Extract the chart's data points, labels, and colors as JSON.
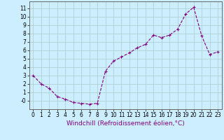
{
  "x": [
    0,
    1,
    2,
    3,
    4,
    5,
    6,
    7,
    8,
    9,
    10,
    11,
    12,
    13,
    14,
    15,
    16,
    17,
    18,
    19,
    20,
    21,
    22,
    23
  ],
  "y": [
    3,
    2,
    1.5,
    0.5,
    0.2,
    -0.2,
    -0.3,
    -0.4,
    -0.3,
    3.5,
    4.7,
    5.2,
    5.7,
    6.3,
    6.7,
    7.8,
    7.5,
    7.8,
    8.5,
    10.3,
    11.1,
    7.7,
    5.5,
    5.8
  ],
  "line_color": "#800080",
  "marker": "+",
  "marker_size": 3.5,
  "marker_linewidth": 0.8,
  "line_width": 0.8,
  "bg_color": "#cceeff",
  "grid_color": "#aacccc",
  "xlabel": "Windchill (Refroidissement éolien,°C)",
  "xlim": [
    -0.5,
    23.5
  ],
  "ylim": [
    -1.0,
    11.8
  ],
  "yticks": [
    0,
    1,
    2,
    3,
    4,
    5,
    6,
    7,
    8,
    9,
    10,
    11
  ],
  "ytick_labels": [
    "-0",
    "1",
    "2",
    "3",
    "4",
    "5",
    "6",
    "7",
    "8",
    "9",
    "10",
    "11"
  ],
  "xticks": [
    0,
    1,
    2,
    3,
    4,
    5,
    6,
    7,
    8,
    9,
    10,
    11,
    12,
    13,
    14,
    15,
    16,
    17,
    18,
    19,
    20,
    21,
    22,
    23
  ],
  "tick_fontsize": 5.5,
  "xlabel_fontsize": 6.5,
  "spine_color": "#666666"
}
